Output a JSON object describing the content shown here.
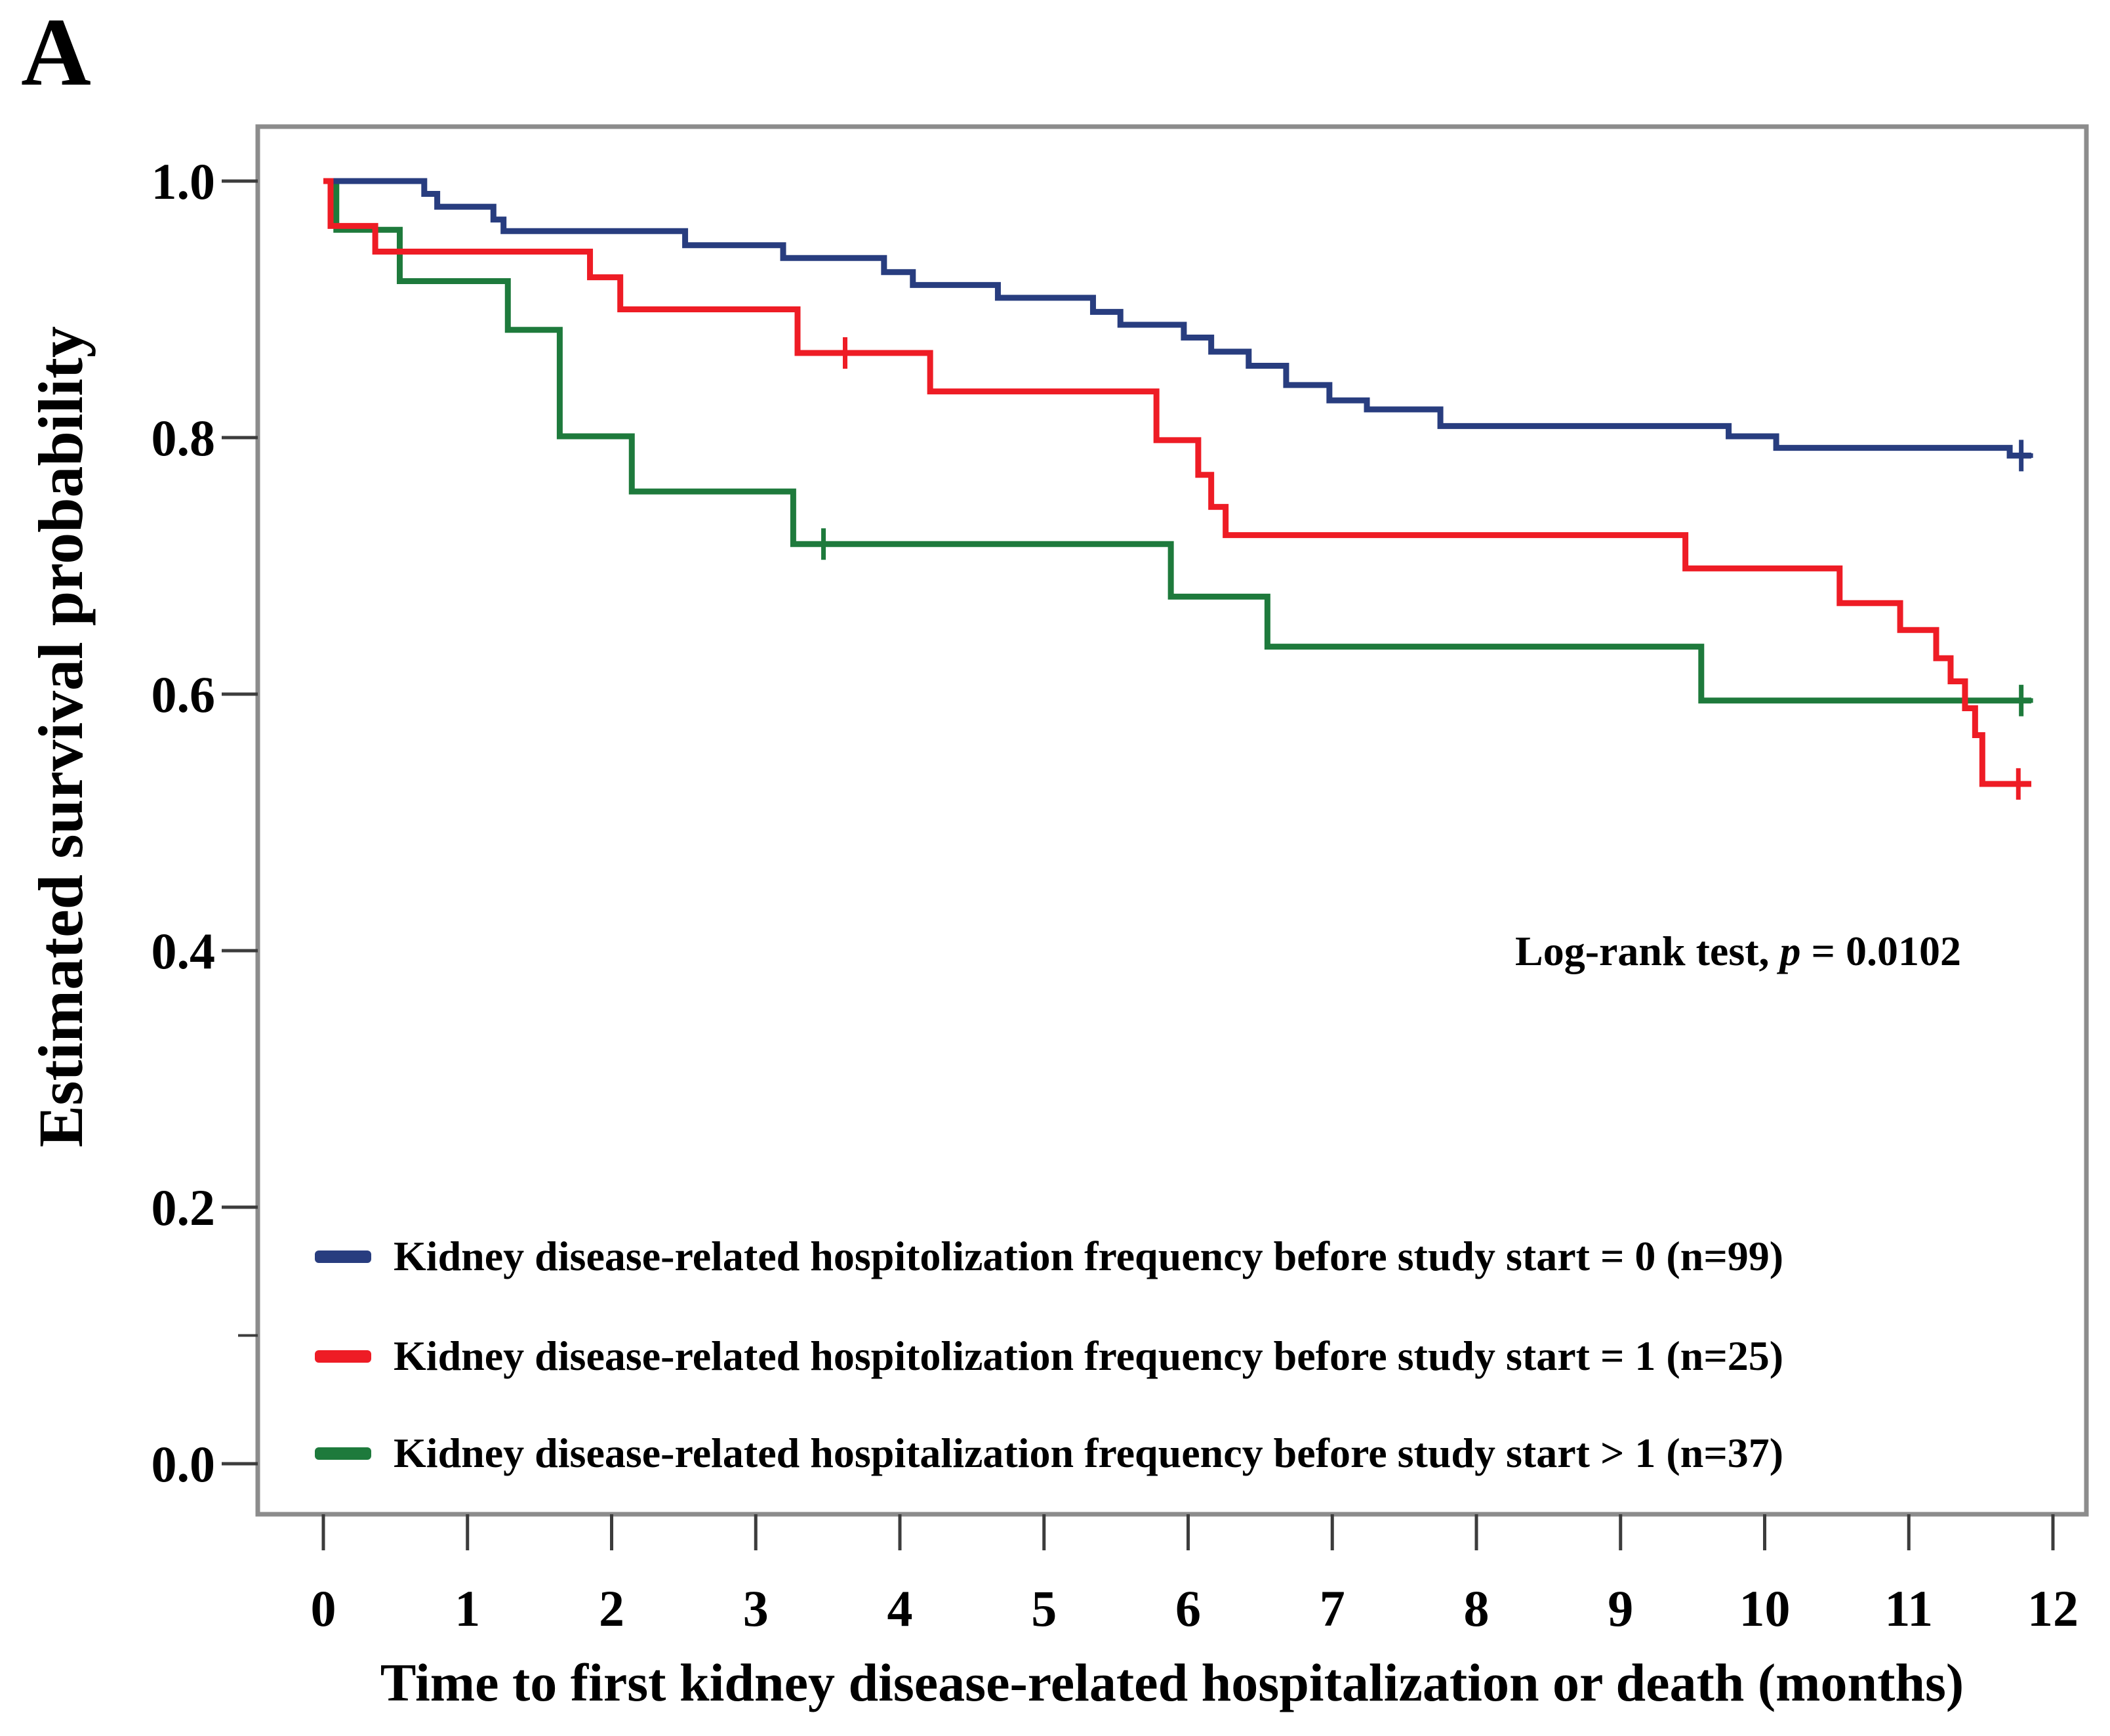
{
  "panel_label": "A",
  "chart_data": {
    "type": "line",
    "subtype": "kaplan-meier-step",
    "title": "",
    "xlabel": "Time to first kidney disease-related hospitalization or death (months)",
    "ylabel": "Estimated survival probability",
    "xlim": [
      0,
      12
    ],
    "ylim": [
      0.0,
      1.0
    ],
    "grid": "off",
    "legend_position": "inside-bottom-left",
    "annotation": {
      "prefix": "Log-rank test, ",
      "italic": "p",
      "suffix": " = 0.0102"
    },
    "x_axis": {
      "ticks": [
        0,
        1,
        2,
        3,
        4,
        5,
        6,
        7,
        8,
        9,
        10,
        11,
        12
      ]
    },
    "y_axis": {
      "ticks": [
        {
          "v": 1.0,
          "label": "1.0"
        },
        {
          "v": 0.8,
          "label": "0.8"
        },
        {
          "v": 0.6,
          "label": "0.6"
        },
        {
          "v": 0.4,
          "label": "0.4"
        },
        {
          "v": 0.2,
          "label": "0.2"
        },
        {
          "v": 0.0,
          "label": "0.0"
        }
      ],
      "minor_ticks": [
        0.1
      ]
    },
    "frame_color": "#8c8c8c",
    "tick_color": "#3c3c3c",
    "series": [
      {
        "label": "Kidney disease-related hospitolization frequency before study start = 0 (n=99)",
        "color": "#283d7f",
        "n": 99,
        "steps": [
          [
            0,
            1.0
          ],
          [
            0.7,
            0.99
          ],
          [
            0.79,
            0.98
          ],
          [
            1.18,
            0.97
          ],
          [
            1.25,
            0.961
          ],
          [
            2.51,
            0.95
          ],
          [
            3.19,
            0.94
          ],
          [
            3.89,
            0.929
          ],
          [
            4.09,
            0.919
          ],
          [
            4.68,
            0.909
          ],
          [
            5.34,
            0.898
          ],
          [
            5.53,
            0.888
          ],
          [
            5.97,
            0.878
          ],
          [
            6.16,
            0.867
          ],
          [
            6.42,
            0.856
          ],
          [
            6.68,
            0.841
          ],
          [
            6.98,
            0.829
          ],
          [
            7.24,
            0.822
          ],
          [
            7.75,
            0.809
          ],
          [
            9.75,
            0.801
          ],
          [
            10.08,
            0.792
          ],
          [
            11.7,
            0.786
          ]
        ],
        "end_time": 11.85,
        "censors": [
          [
            11.78,
            0.786
          ]
        ]
      },
      {
        "label": "Kidney disease-related hospitolization frequency before study start = 1 (n=25)",
        "color": "#ee1c25",
        "n": 25,
        "steps": [
          [
            0,
            1.0
          ],
          [
            0.05,
            0.965
          ],
          [
            0.36,
            0.945
          ],
          [
            1.85,
            0.925
          ],
          [
            2.06,
            0.9
          ],
          [
            3.29,
            0.866
          ],
          [
            4.21,
            0.836
          ],
          [
            5.78,
            0.798
          ],
          [
            6.07,
            0.771
          ],
          [
            6.16,
            0.746
          ],
          [
            6.26,
            0.724
          ],
          [
            9.45,
            0.698
          ],
          [
            10.52,
            0.671
          ],
          [
            10.94,
            0.65
          ],
          [
            11.19,
            0.628
          ],
          [
            11.29,
            0.61
          ],
          [
            11.39,
            0.589
          ],
          [
            11.46,
            0.568
          ],
          [
            11.51,
            0.53
          ]
        ],
        "end_time": 11.85,
        "censors": [
          [
            3.62,
            0.866
          ],
          [
            11.76,
            0.53
          ]
        ]
      },
      {
        "label": "Kidney disease-related hospitalization frequency before study start > 1 (n=37)",
        "color": "#1e7a3c",
        "n": 37,
        "steps": [
          [
            0,
            1.0
          ],
          [
            0.09,
            0.962
          ],
          [
            0.53,
            0.922
          ],
          [
            1.28,
            0.884
          ],
          [
            1.64,
            0.801
          ],
          [
            2.14,
            0.758
          ],
          [
            3.26,
            0.717
          ],
          [
            5.88,
            0.676
          ],
          [
            6.55,
            0.637
          ],
          [
            9.56,
            0.595
          ]
        ],
        "end_time": 11.85,
        "censors": [
          [
            3.47,
            0.717
          ],
          [
            11.78,
            0.595
          ]
        ]
      }
    ]
  }
}
